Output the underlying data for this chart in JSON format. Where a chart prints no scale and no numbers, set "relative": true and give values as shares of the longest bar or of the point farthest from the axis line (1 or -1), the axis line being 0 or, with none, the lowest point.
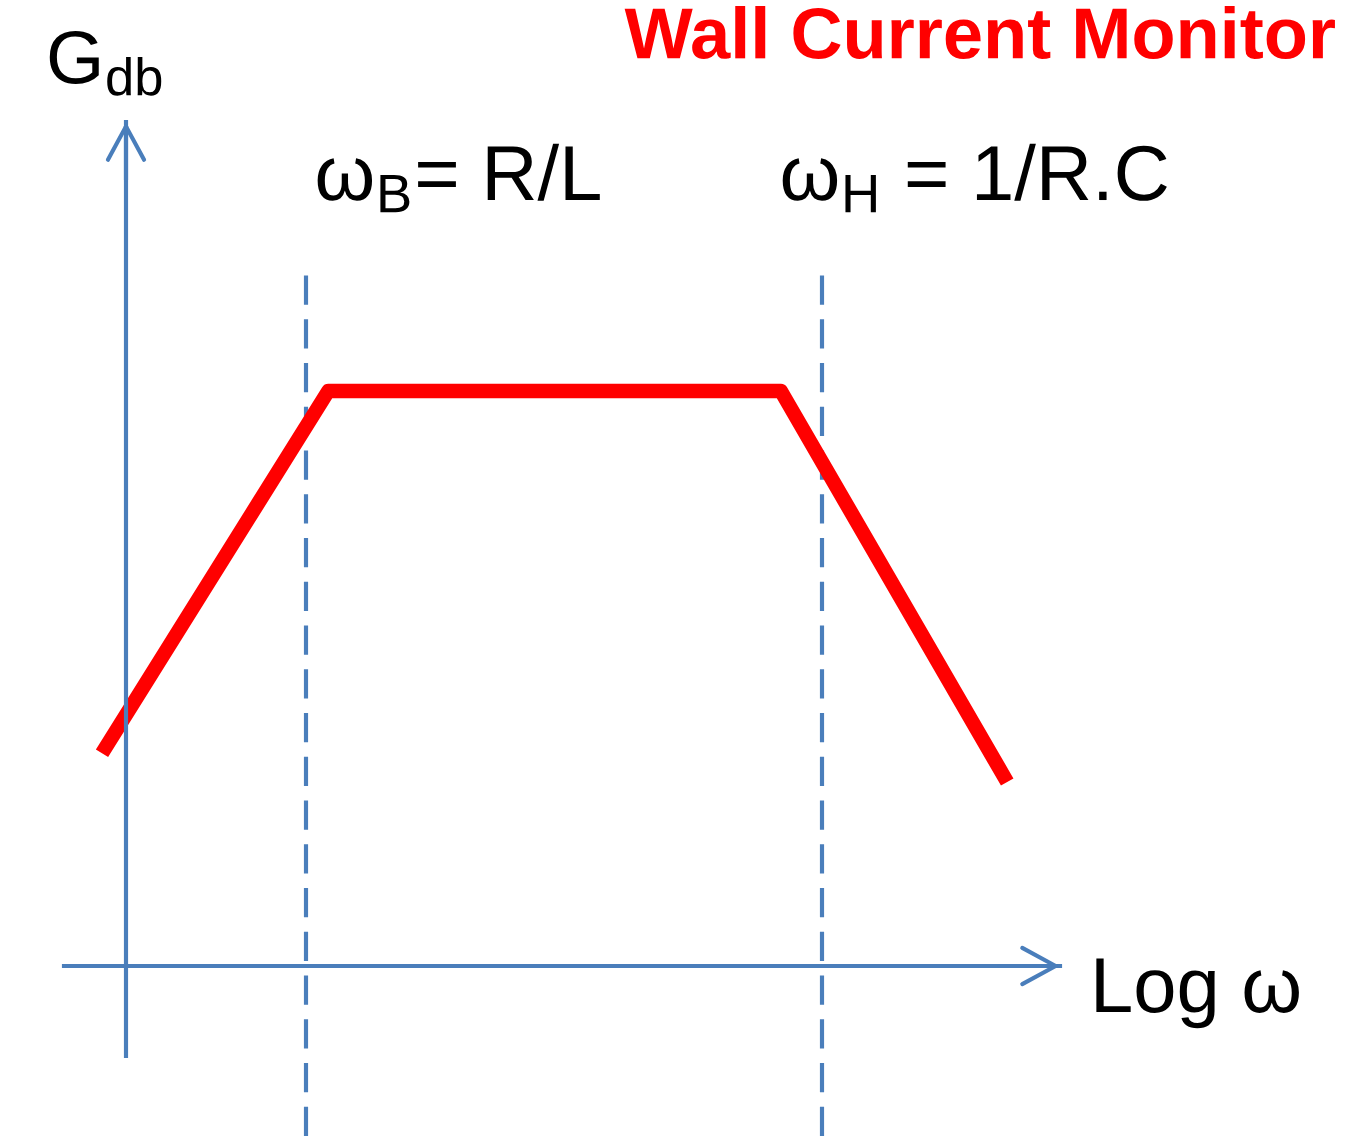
{
  "chart_data": {
    "type": "line",
    "title": "Wall Current Monitor",
    "xlabel": "Log ω",
    "ylabel": "G$_{db}$",
    "relative": true,
    "categories": [
      null,
      null,
      null,
      null,
      null
    ],
    "values": [
      0.37,
      1,
      1,
      1,
      0.32
    ],
    "color": "#ff0000",
    "annotations": [
      "ω$_{B}$= R/L",
      "ω$_{H}$ = 1/R.C"
    ]
  }
}
